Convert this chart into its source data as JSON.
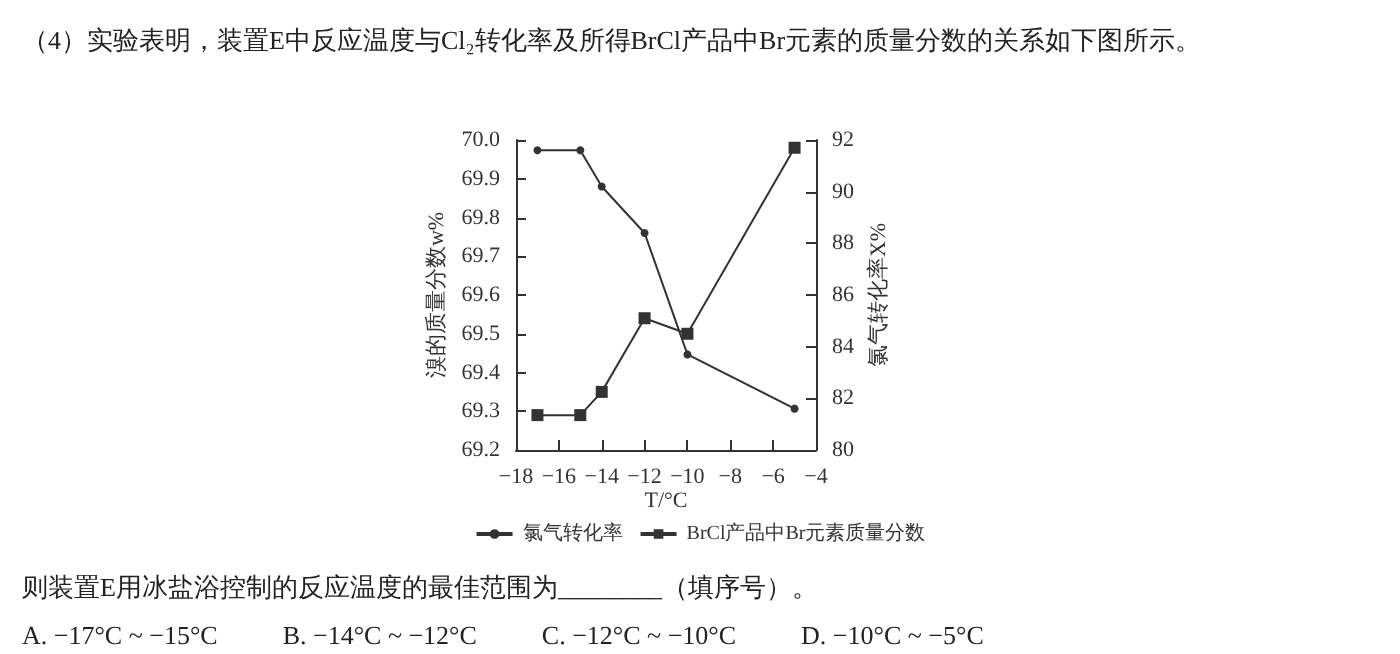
{
  "chart_data": {
    "type": "line",
    "title": "（4）实验表明，装置E中反应温度与Cl₂转化率及所得BrCl产品中Br元素的质量分数的关系如下图所示。",
    "xlabel": "T/°C",
    "ylabel": "溴的质量分数w%",
    "y2label": "氯气转化率X%",
    "x": [
      -17,
      -15,
      -14,
      -12,
      -10,
      -5
    ],
    "series": [
      {
        "name": "氯气转化率",
        "color": "#333333",
        "axis": "y2",
        "marker": "circle",
        "values": [
          91.6,
          91.6,
          90.2,
          88.4,
          83.7,
          81.6
        ]
      },
      {
        "name": "BrCl产品中Br元素质量分数",
        "color": "#333333",
        "marker": "square",
        "values": [
          69.29,
          69.29,
          69.35,
          69.54,
          69.5,
          69.98
        ]
      }
    ],
    "xlim": [
      -18,
      -4
    ],
    "xticks": [
      -18,
      -16,
      -14,
      -12,
      -10,
      -8,
      -6,
      -4
    ],
    "ylim": [
      69.2,
      70.0
    ],
    "yticks": [
      69.2,
      69.3,
      69.4,
      69.5,
      69.6,
      69.7,
      69.8,
      69.9,
      {
        "value": 70.0,
        "label": "70.0"
      }
    ],
    "y2lim": [
      80,
      92
    ],
    "y2ticks": [
      80,
      82,
      84,
      86,
      88,
      90,
      92
    ],
    "grid": false,
    "legend": "bottom",
    "line_style": "solid",
    "annotations": [
      "则装置E用冰盐浴控制的反应温度的最佳范围为________（填序号）。",
      "A. −17°C ~ −15°C          B. −14°C ~ −12°C          C. −12°C ~ −10°C          D. −10°C ~ −5°C"
    ]
  }
}
